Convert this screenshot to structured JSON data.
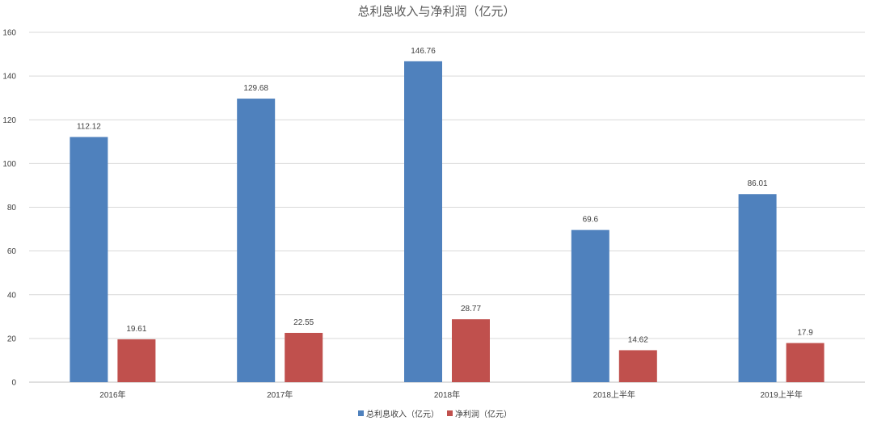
{
  "chart_data": {
    "type": "bar",
    "title": "总利息收入与净利润（亿元）",
    "categories": [
      "2016年",
      "2017年",
      "2018年",
      "2018上半年",
      "2019上半年"
    ],
    "series": [
      {
        "name": "总利息收入（亿元）",
        "color": "#4F81BD",
        "values": [
          112.12,
          129.68,
          146.76,
          69.6,
          86.01
        ]
      },
      {
        "name": "净利润（亿元）",
        "color": "#C0504D",
        "values": [
          19.61,
          22.55,
          28.77,
          14.62,
          17.9
        ]
      }
    ],
    "value_labels": [
      [
        "112.12",
        "129.68",
        "146.76",
        "69.6",
        "86.01"
      ],
      [
        "19.61",
        "22.55",
        "28.77",
        "14.62",
        "17.9"
      ]
    ],
    "ylim": [
      0,
      160
    ],
    "yticks": [
      "0",
      "20",
      "40",
      "60",
      "80",
      "100",
      "120",
      "140",
      "160"
    ],
    "grid": true,
    "legend_position": "bottom"
  }
}
